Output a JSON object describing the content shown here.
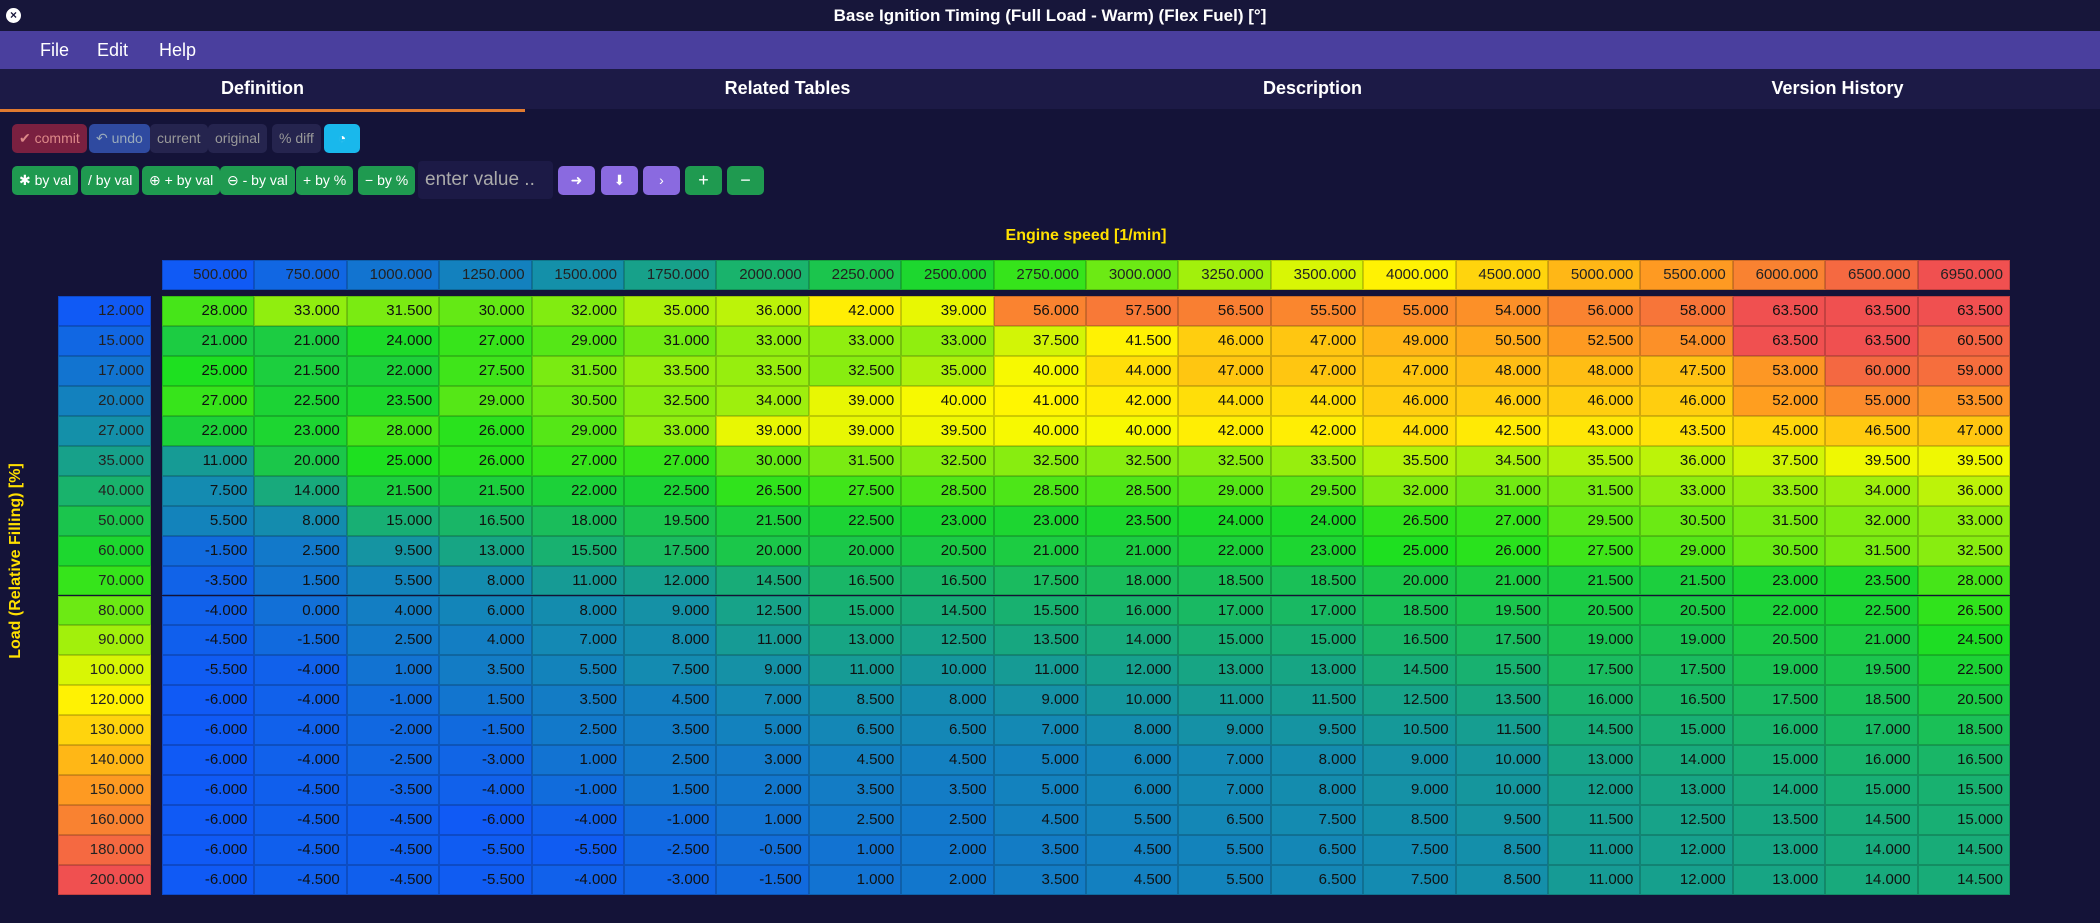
{
  "window": {
    "title": "Base Ignition Timing (Full Load - Warm) (Flex Fuel) [°]"
  },
  "menu": [
    "File",
    "Edit",
    "Help"
  ],
  "tabs": [
    "Definition",
    "Related Tables",
    "Description",
    "Version History"
  ],
  "toolbar1": [
    "commit",
    "undo",
    "current",
    "original",
    "% diff"
  ],
  "toolbar2": [
    "by val",
    "/ by val",
    "+ by val",
    "- by val",
    "+ by %",
    "− by %"
  ],
  "input_placeholder": "enter value ..",
  "table": {
    "x_axis_label": "Engine speed [1/min]",
    "y_axis_label": "Load (Relative Filling) [%]",
    "columns": [
      "500.000",
      "750.000",
      "1000.000",
      "1250.000",
      "1500.000",
      "1750.000",
      "2000.000",
      "2250.000",
      "2500.000",
      "2750.000",
      "3000.000",
      "3250.000",
      "3500.000",
      "4000.000",
      "4500.000",
      "5000.000",
      "5500.000",
      "6000.000",
      "6500.000",
      "6950.000"
    ],
    "rows": [
      {
        "label": "12.000",
        "values": [
          "28.000",
          "33.000",
          "31.500",
          "30.000",
          "32.000",
          "35.000",
          "36.000",
          "42.000",
          "39.000",
          "56.000",
          "57.500",
          "56.500",
          "55.500",
          "55.000",
          "54.000",
          "56.000",
          "58.000",
          "63.500",
          "63.500",
          "63.500"
        ]
      },
      {
        "label": "15.000",
        "values": [
          "21.000",
          "21.000",
          "24.000",
          "27.000",
          "29.000",
          "31.000",
          "33.000",
          "33.000",
          "33.000",
          "37.500",
          "41.500",
          "46.000",
          "47.000",
          "49.000",
          "50.500",
          "52.500",
          "54.000",
          "63.500",
          "63.500",
          "60.500"
        ]
      },
      {
        "label": "17.000",
        "values": [
          "25.000",
          "21.500",
          "22.000",
          "27.500",
          "31.500",
          "33.500",
          "33.500",
          "32.500",
          "35.000",
          "40.000",
          "44.000",
          "47.000",
          "47.000",
          "47.000",
          "48.000",
          "48.000",
          "47.500",
          "53.000",
          "60.000",
          "59.000"
        ]
      },
      {
        "label": "20.000",
        "values": [
          "27.000",
          "22.500",
          "23.500",
          "29.000",
          "30.500",
          "32.500",
          "34.000",
          "39.000",
          "40.000",
          "41.000",
          "42.000",
          "44.000",
          "44.000",
          "46.000",
          "46.000",
          "46.000",
          "46.000",
          "52.000",
          "55.000",
          "53.500"
        ]
      },
      {
        "label": "27.000",
        "values": [
          "22.000",
          "23.000",
          "28.000",
          "26.000",
          "29.000",
          "33.000",
          "39.000",
          "39.000",
          "39.500",
          "40.000",
          "40.000",
          "42.000",
          "42.000",
          "44.000",
          "42.500",
          "43.000",
          "43.500",
          "45.000",
          "46.500",
          "47.000"
        ]
      },
      {
        "label": "35.000",
        "values": [
          "11.000",
          "20.000",
          "25.000",
          "26.000",
          "27.000",
          "27.000",
          "30.000",
          "31.500",
          "32.500",
          "32.500",
          "32.500",
          "32.500",
          "33.500",
          "35.500",
          "34.500",
          "35.500",
          "36.000",
          "37.500",
          "39.500",
          "39.500"
        ]
      },
      {
        "label": "40.000",
        "values": [
          "7.500",
          "14.000",
          "21.500",
          "21.500",
          "22.000",
          "22.500",
          "26.500",
          "27.500",
          "28.500",
          "28.500",
          "28.500",
          "29.000",
          "29.500",
          "32.000",
          "31.000",
          "31.500",
          "33.000",
          "33.500",
          "34.000",
          "36.000"
        ]
      },
      {
        "label": "50.000",
        "values": [
          "5.500",
          "8.000",
          "15.000",
          "16.500",
          "18.000",
          "19.500",
          "21.500",
          "22.500",
          "23.000",
          "23.000",
          "23.500",
          "24.000",
          "24.000",
          "26.500",
          "27.000",
          "29.500",
          "30.500",
          "31.500",
          "32.000",
          "33.000"
        ]
      },
      {
        "label": "60.000",
        "values": [
          "-1.500",
          "2.500",
          "9.500",
          "13.000",
          "15.500",
          "17.500",
          "20.000",
          "20.000",
          "20.500",
          "21.000",
          "21.000",
          "22.000",
          "23.000",
          "25.000",
          "26.000",
          "27.500",
          "29.000",
          "30.500",
          "31.500",
          "32.500"
        ]
      },
      {
        "label": "70.000",
        "values": [
          "-3.500",
          "1.500",
          "5.500",
          "8.000",
          "11.000",
          "12.000",
          "14.500",
          "16.500",
          "16.500",
          "17.500",
          "18.000",
          "18.500",
          "18.500",
          "20.000",
          "21.000",
          "21.500",
          "21.500",
          "23.000",
          "23.500",
          "28.000"
        ]
      },
      {
        "label": "80.000",
        "values": [
          "-4.000",
          "0.000",
          "4.000",
          "6.000",
          "8.000",
          "9.000",
          "12.500",
          "15.000",
          "14.500",
          "15.500",
          "16.000",
          "17.000",
          "17.000",
          "18.500",
          "19.500",
          "20.500",
          "20.500",
          "22.000",
          "22.500",
          "26.500"
        ]
      },
      {
        "label": "90.000",
        "values": [
          "-4.500",
          "-1.500",
          "2.500",
          "4.000",
          "7.000",
          "8.000",
          "11.000",
          "13.000",
          "12.500",
          "13.500",
          "14.000",
          "15.000",
          "15.000",
          "16.500",
          "17.500",
          "19.000",
          "19.000",
          "20.500",
          "21.000",
          "24.500"
        ]
      },
      {
        "label": "100.000",
        "values": [
          "-5.500",
          "-4.000",
          "1.000",
          "3.500",
          "5.500",
          "7.500",
          "9.000",
          "11.000",
          "10.000",
          "11.000",
          "12.000",
          "13.000",
          "13.000",
          "14.500",
          "15.500",
          "17.500",
          "17.500",
          "19.000",
          "19.500",
          "22.500"
        ]
      },
      {
        "label": "120.000",
        "values": [
          "-6.000",
          "-4.000",
          "-1.000",
          "1.500",
          "3.500",
          "4.500",
          "7.000",
          "8.500",
          "8.000",
          "9.000",
          "10.000",
          "11.000",
          "11.500",
          "12.500",
          "13.500",
          "16.000",
          "16.500",
          "17.500",
          "18.500",
          "20.500"
        ]
      },
      {
        "label": "130.000",
        "values": [
          "-6.000",
          "-4.000",
          "-2.000",
          "-1.500",
          "2.500",
          "3.500",
          "5.000",
          "6.500",
          "6.500",
          "7.000",
          "8.000",
          "9.000",
          "9.500",
          "10.500",
          "11.500",
          "14.500",
          "15.000",
          "16.000",
          "17.000",
          "18.500"
        ]
      },
      {
        "label": "140.000",
        "values": [
          "-6.000",
          "-4.000",
          "-2.500",
          "-3.000",
          "1.000",
          "2.500",
          "3.000",
          "4.500",
          "4.500",
          "5.000",
          "6.000",
          "7.000",
          "8.000",
          "9.000",
          "10.000",
          "13.000",
          "14.000",
          "15.000",
          "16.000",
          "16.500"
        ]
      },
      {
        "label": "150.000",
        "values": [
          "-6.000",
          "-4.500",
          "-3.500",
          "-4.000",
          "-1.000",
          "1.500",
          "2.000",
          "3.500",
          "3.500",
          "5.000",
          "6.000",
          "7.000",
          "8.000",
          "9.000",
          "10.000",
          "12.000",
          "13.000",
          "14.000",
          "15.000",
          "15.500"
        ]
      },
      {
        "label": "160.000",
        "values": [
          "-6.000",
          "-4.500",
          "-4.500",
          "-6.000",
          "-4.000",
          "-1.000",
          "1.000",
          "2.500",
          "2.500",
          "4.500",
          "5.500",
          "6.500",
          "7.500",
          "8.500",
          "9.500",
          "11.500",
          "12.500",
          "13.500",
          "14.500",
          "15.000"
        ]
      },
      {
        "label": "180.000",
        "values": [
          "-6.000",
          "-4.500",
          "-4.500",
          "-5.500",
          "-5.500",
          "-2.500",
          "-0.500",
          "1.000",
          "2.000",
          "3.500",
          "4.500",
          "5.500",
          "6.500",
          "7.500",
          "8.500",
          "11.000",
          "12.000",
          "13.000",
          "14.000",
          "14.500"
        ]
      },
      {
        "label": "200.000",
        "values": [
          "-6.000",
          "-4.500",
          "-4.500",
          "-5.500",
          "-4.000",
          "-3.000",
          "-1.500",
          "1.000",
          "2.000",
          "3.500",
          "4.500",
          "5.500",
          "6.500",
          "7.500",
          "8.500",
          "11.000",
          "12.000",
          "13.000",
          "14.000",
          "14.500"
        ]
      }
    ]
  }
}
